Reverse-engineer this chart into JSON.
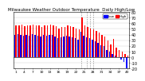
{
  "title": "Milwaukee Weather Outdoor Temperature  Daily High/Low",
  "high_color": "#ff0000",
  "low_color": "#0000ff",
  "background_color": "#ffffff",
  "grid_color": "#cccccc",
  "highs": [
    56,
    57,
    58,
    55,
    57,
    56,
    58,
    57,
    56,
    54,
    57,
    56,
    58,
    57,
    55,
    51,
    53,
    54,
    56,
    55,
    53,
    51,
    49,
    70,
    56,
    53,
    51,
    49,
    46,
    43,
    39,
    36,
    29,
    23,
    32,
    16,
    13,
    9,
    6,
    3
  ],
  "lows": [
    39,
    41,
    40,
    38,
    39,
    38,
    41,
    40,
    38,
    36,
    39,
    38,
    40,
    39,
    37,
    33,
    35,
    36,
    38,
    37,
    35,
    33,
    31,
    45,
    38,
    35,
    33,
    31,
    28,
    25,
    21,
    19,
    13,
    9,
    6,
    3,
    -1,
    -4,
    -9,
    -40
  ],
  "ylim_min": -20,
  "ylim_max": 80,
  "ytick_vals": [
    -20,
    -10,
    0,
    10,
    20,
    30,
    40,
    50,
    60,
    70,
    80
  ],
  "ytick_labels": [
    "-20",
    "-10",
    "0",
    "10",
    "20",
    "30",
    "40",
    "50",
    "60",
    "70",
    "80"
  ],
  "n_bars": 40,
  "bar_width": 0.4,
  "dashed_cols": [
    23,
    25,
    26,
    27
  ],
  "legend_labels": [
    "Low",
    "High"
  ],
  "legend_colors": [
    "#0000ff",
    "#ff0000"
  ]
}
